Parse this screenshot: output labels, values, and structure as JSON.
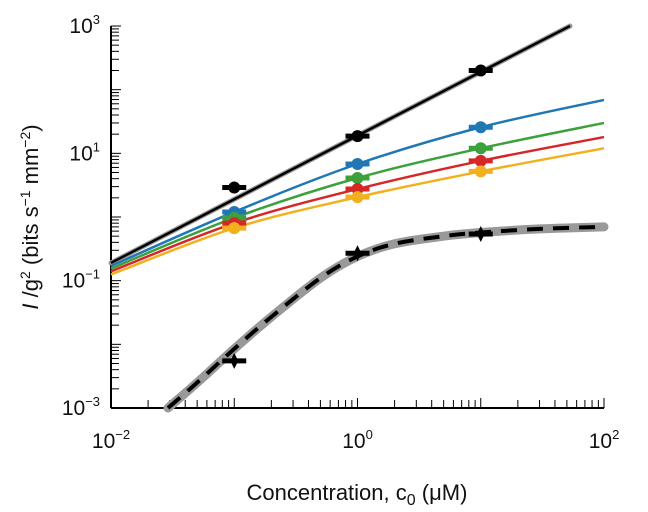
{
  "chart_data": {
    "type": "line",
    "title": "",
    "xlabel": "Concentration, c0 (μM)",
    "xlabel_parts": {
      "main": "Concentration, c",
      "sub": "0",
      "tail": " (μM)"
    },
    "ylabel": "I /g2 (bits s-1 mm-2)",
    "xscale": "log",
    "yscale": "log",
    "xlim": [
      0.01,
      100
    ],
    "ylim": [
      0.001,
      1000
    ],
    "x_ticks": [
      {
        "value": 0.01,
        "base": "10",
        "exp": "−2"
      },
      {
        "value": 1,
        "base": "10",
        "exp": "0"
      },
      {
        "value": 100,
        "base": "10",
        "exp": "2"
      }
    ],
    "y_ticks": [
      {
        "value": 0.001,
        "base": "10",
        "exp": "−3"
      },
      {
        "value": 0.1,
        "base": "10",
        "exp": "−1"
      },
      {
        "value": 10,
        "base": "10",
        "exp": "1"
      },
      {
        "value": 1000,
        "base": "10",
        "exp": "3"
      }
    ],
    "grid": false,
    "legend": "none",
    "series": [
      {
        "name": "black",
        "color": "#000000",
        "style": "solid",
        "halo": "#999999",
        "x": [
          0.01,
          0.1,
          1,
          10,
          53
        ],
        "y": [
          0.19,
          1.9,
          19,
          190,
          1000
        ],
        "points": {
          "x": [
            0.1,
            1,
            10
          ],
          "y": [
            2.9,
            18.6,
            200
          ]
        }
      },
      {
        "name": "blue",
        "color": "#1f77b4",
        "style": "solid",
        "x": [
          0.01,
          0.1,
          1,
          10,
          100
        ],
        "y": [
          0.17,
          1.2,
          6.8,
          25.7,
          69
        ],
        "points": {
          "x": [
            0.1,
            1,
            10
          ],
          "y": [
            1.2,
            6.8,
            25.7
          ]
        }
      },
      {
        "name": "green",
        "color": "#3ca03c",
        "style": "solid",
        "x": [
          0.01,
          0.1,
          1,
          10,
          100
        ],
        "y": [
          0.155,
          0.97,
          4.1,
          12,
          30
        ],
        "points": {
          "x": [
            0.1,
            1,
            10
          ],
          "y": [
            0.97,
            4.1,
            12
          ]
        }
      },
      {
        "name": "red",
        "color": "#d62728",
        "style": "solid",
        "x": [
          0.01,
          0.1,
          1,
          10,
          100
        ],
        "y": [
          0.14,
          0.8,
          2.75,
          7.6,
          18
        ],
        "points": {
          "x": [
            0.1,
            1,
            10
          ],
          "y": [
            0.8,
            2.75,
            7.6
          ]
        }
      },
      {
        "name": "yellow",
        "color": "#f2b01e",
        "style": "solid",
        "x": [
          0.01,
          0.1,
          1,
          10,
          100
        ],
        "y": [
          0.125,
          0.67,
          2.05,
          5.2,
          12
        ],
        "points": {
          "x": [
            0.1,
            1,
            10
          ],
          "y": [
            0.67,
            2.05,
            5.2
          ]
        }
      },
      {
        "name": "lower-fit",
        "color": "#000000",
        "style": "dashed",
        "halo": "#999999",
        "x": [
          0.029,
          0.05,
          0.1,
          0.2,
          0.5,
          1,
          2,
          5,
          10,
          30,
          100
        ],
        "y": [
          0.001,
          0.0025,
          0.0085,
          0.027,
          0.11,
          0.24,
          0.38,
          0.5,
          0.57,
          0.65,
          0.7
        ],
        "points": {
          "x": [
            0.1,
            1,
            10
          ],
          "y": [
            0.0055,
            0.27,
            0.54
          ]
        }
      }
    ]
  }
}
